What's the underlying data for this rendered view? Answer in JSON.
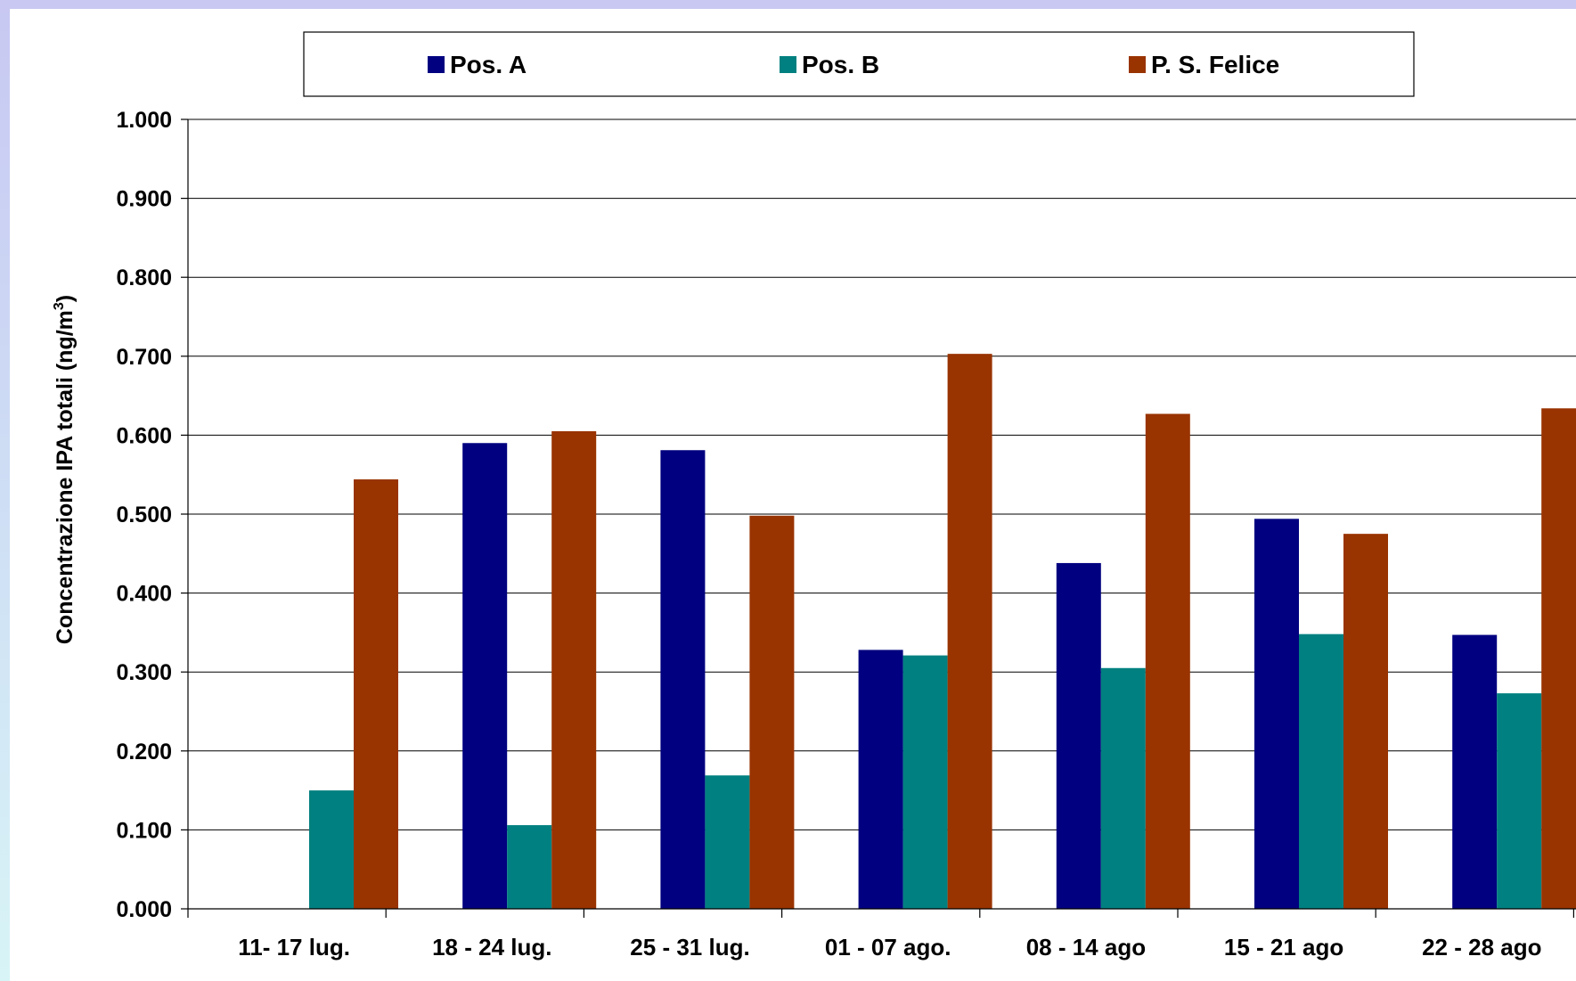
{
  "chart_data": {
    "type": "bar",
    "title": "",
    "xlabel": "",
    "ylabel": "Concentrazione IPA totali (ng/m",
    "ylabel_superscript": "3",
    "ylabel_suffix": ")",
    "categories": [
      "11- 17 lug.",
      "18 - 24 lug.",
      "25 - 31 lug.",
      "01 - 07 ago.",
      "08 - 14 ago",
      "15 - 21 ago",
      "22 - 28 ago"
    ],
    "series": [
      {
        "name": "Pos. A",
        "color": "#000080",
        "values": [
          null,
          0.59,
          0.581,
          0.328,
          0.438,
          0.494,
          0.347
        ]
      },
      {
        "name": "Pos. B",
        "color": "#008080",
        "values": [
          0.15,
          0.106,
          0.169,
          0.321,
          0.305,
          0.348,
          0.273
        ]
      },
      {
        "name": "P. S. Felice",
        "color": "#993300",
        "values": [
          0.544,
          0.605,
          0.498,
          0.703,
          0.627,
          0.475,
          0.634
        ]
      }
    ],
    "ylim": [
      0,
      1.0
    ],
    "yticks": [
      "0.000",
      "0.100",
      "0.200",
      "0.300",
      "0.400",
      "0.500",
      "0.600",
      "0.700",
      "0.800",
      "0.900",
      "1.000"
    ],
    "grid": true,
    "legend_position": "top"
  }
}
